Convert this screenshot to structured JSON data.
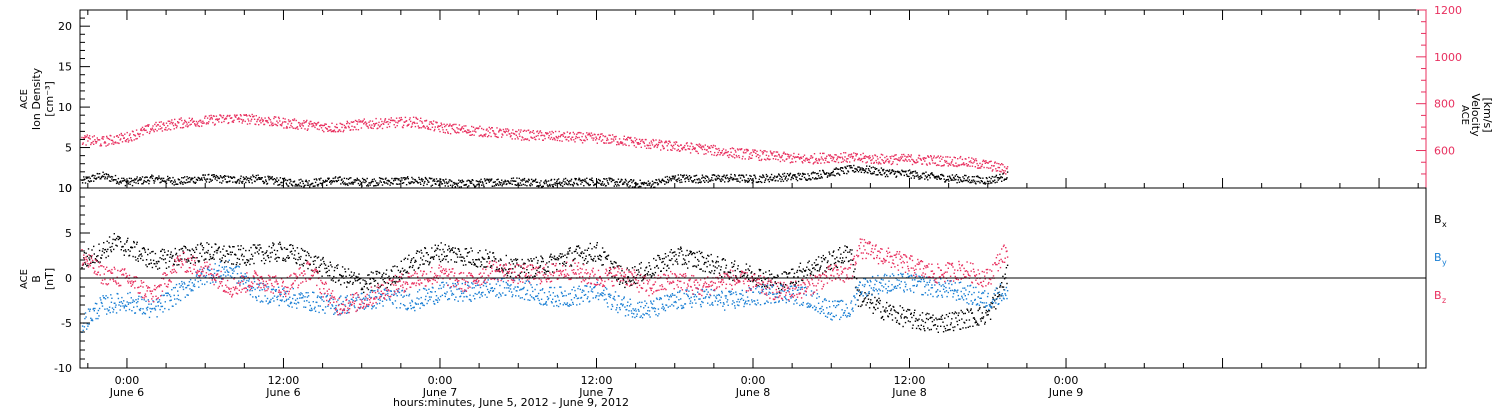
{
  "colors": {
    "axis": "#000000",
    "velocity": "#e8305f",
    "density": "#000000",
    "bx": "#000000",
    "by": "#1a7fd4",
    "bz": "#e8305f"
  },
  "x_axis": {
    "title": "hours:minutes, June  5, 2012 - June  9, 2012",
    "range_hours": [
      -3.6,
      99.6
    ],
    "ticks": [
      {
        "hour": 0,
        "time": "0:00",
        "day": "June 6"
      },
      {
        "hour": 12,
        "time": "12:00",
        "day": "June 6"
      },
      {
        "hour": 24,
        "time": "0:00",
        "day": "June 7"
      },
      {
        "hour": 36,
        "time": "12:00",
        "day": "June 7"
      },
      {
        "hour": 48,
        "time": "0:00",
        "day": "June 8"
      },
      {
        "hour": 60,
        "time": "12:00",
        "day": "June 8"
      },
      {
        "hour": 72,
        "time": "0:00",
        "day": "June 9"
      }
    ]
  },
  "chart_data": [
    {
      "type": "scatter",
      "panel": "top",
      "ylabel_left": [
        "ACE",
        "Ion Density",
        "[cm⁻³]"
      ],
      "ylabel_right": [
        "ACE",
        "Velocity",
        "[km/s]"
      ],
      "ylim_left": [
        0,
        22
      ],
      "ylim_right": [
        440,
        1200
      ],
      "yticks_left": [
        0,
        5,
        10,
        15,
        20
      ],
      "yticks_right": [
        600,
        800,
        1000,
        1200
      ],
      "series": [
        {
          "key": "density",
          "axis": "left",
          "points": [
            [
              -3.5,
              0.9
            ],
            [
              -2,
              1.6
            ],
            [
              0,
              0.8
            ],
            [
              2,
              1.2
            ],
            [
              4,
              0.9
            ],
            [
              6,
              1.3
            ],
            [
              8,
              1.1
            ],
            [
              10,
              1.2
            ],
            [
              12,
              0.8
            ],
            [
              14,
              0.7
            ],
            [
              16,
              1
            ],
            [
              18,
              0.8
            ],
            [
              20,
              0.9
            ],
            [
              22,
              1
            ],
            [
              24,
              0.7
            ],
            [
              26,
              0.6
            ],
            [
              28,
              0.8
            ],
            [
              30,
              0.9
            ],
            [
              32,
              0.7
            ],
            [
              34,
              0.8
            ],
            [
              36,
              0.9
            ],
            [
              38,
              0.7
            ],
            [
              40,
              0.5
            ],
            [
              42,
              1.3
            ],
            [
              44,
              1.2
            ],
            [
              46,
              1.3
            ],
            [
              48,
              1.2
            ],
            [
              50,
              1.4
            ],
            [
              52,
              1.5
            ],
            [
              54,
              2
            ],
            [
              56,
              2.5
            ],
            [
              58,
              2
            ],
            [
              60,
              1.8
            ],
            [
              62,
              1.4
            ],
            [
              64,
              1.2
            ],
            [
              66,
              1
            ],
            [
              67.5,
              1.6
            ]
          ]
        },
        {
          "key": "velocity",
          "axis": "right",
          "points": [
            [
              -3.5,
              650
            ],
            [
              -2,
              640
            ],
            [
              0,
              660
            ],
            [
              2,
              700
            ],
            [
              4,
              720
            ],
            [
              6,
              730
            ],
            [
              8,
              740
            ],
            [
              10,
              735
            ],
            [
              12,
              720
            ],
            [
              14,
              710
            ],
            [
              16,
              700
            ],
            [
              18,
              715
            ],
            [
              20,
              720
            ],
            [
              22,
              725
            ],
            [
              24,
              700
            ],
            [
              26,
              690
            ],
            [
              28,
              680
            ],
            [
              30,
              670
            ],
            [
              32,
              665
            ],
            [
              34,
              660
            ],
            [
              36,
              655
            ],
            [
              38,
              645
            ],
            [
              40,
              630
            ],
            [
              42,
              620
            ],
            [
              44,
              610
            ],
            [
              46,
              595
            ],
            [
              48,
              585
            ],
            [
              50,
              575
            ],
            [
              52,
              565
            ],
            [
              54,
              575
            ],
            [
              56,
              570
            ],
            [
              58,
              565
            ],
            [
              60,
              565
            ],
            [
              62,
              560
            ],
            [
              64,
              555
            ],
            [
              66,
              540
            ],
            [
              67.5,
              520
            ]
          ]
        }
      ]
    },
    {
      "type": "scatter",
      "panel": "bottom",
      "ylabel_left": [
        "ACE",
        "B",
        "[nT]"
      ],
      "ylim": [
        -10,
        10
      ],
      "yticks": [
        -10,
        -5,
        0,
        5,
        10
      ],
      "legend": [
        {
          "key": "bx",
          "label": "B",
          "sub": "x"
        },
        {
          "key": "by",
          "label": "B",
          "sub": "y"
        },
        {
          "key": "bz",
          "label": "B",
          "sub": "z"
        }
      ],
      "series": [
        {
          "key": "bx",
          "points": [
            [
              -3.5,
              2
            ],
            [
              -2,
              3
            ],
            [
              -1,
              4
            ],
            [
              0,
              3.5
            ],
            [
              2,
              2
            ],
            [
              4,
              2.5
            ],
            [
              6,
              3
            ],
            [
              8,
              2.5
            ],
            [
              10,
              2.7
            ],
            [
              12,
              3
            ],
            [
              14,
              2
            ],
            [
              16,
              0.5
            ],
            [
              18,
              -0.5
            ],
            [
              20,
              0
            ],
            [
              22,
              2
            ],
            [
              24,
              3
            ],
            [
              26,
              2.5
            ],
            [
              28,
              2
            ],
            [
              30,
              1
            ],
            [
              32,
              1.5
            ],
            [
              34,
              2.5
            ],
            [
              36,
              3
            ],
            [
              38,
              0
            ],
            [
              40,
              1
            ],
            [
              42,
              2.5
            ],
            [
              44,
              2
            ],
            [
              46,
              1
            ],
            [
              48,
              0.5
            ],
            [
              50,
              -0.5
            ],
            [
              52,
              1
            ],
            [
              54,
              2
            ],
            [
              55.5,
              3
            ],
            [
              56,
              -2
            ],
            [
              58,
              -3.5
            ],
            [
              60,
              -4.5
            ],
            [
              62,
              -5
            ],
            [
              64,
              -4.5
            ],
            [
              66,
              -4
            ],
            [
              67,
              -1
            ],
            [
              67.5,
              0.5
            ]
          ]
        },
        {
          "key": "by",
          "points": [
            [
              -3.5,
              -5
            ],
            [
              -2,
              -3
            ],
            [
              0,
              -2.5
            ],
            [
              2,
              -3.5
            ],
            [
              4,
              -1.5
            ],
            [
              6,
              0.5
            ],
            [
              8,
              1
            ],
            [
              10,
              -1.5
            ],
            [
              12,
              -2
            ],
            [
              14,
              -2.5
            ],
            [
              16,
              -3
            ],
            [
              18,
              -2.5
            ],
            [
              20,
              -2
            ],
            [
              22,
              -2.5
            ],
            [
              24,
              -1.5
            ],
            [
              26,
              -1.5
            ],
            [
              28,
              -1
            ],
            [
              30,
              -1
            ],
            [
              32,
              -2
            ],
            [
              34,
              -2
            ],
            [
              36,
              -1.5
            ],
            [
              38,
              -3
            ],
            [
              40,
              -3.5
            ],
            [
              42,
              -2.5
            ],
            [
              44,
              -2
            ],
            [
              46,
              -2.5
            ],
            [
              48,
              -2
            ],
            [
              50,
              -1.5
            ],
            [
              52,
              -2
            ],
            [
              54,
              -3.5
            ],
            [
              55.5,
              -3.5
            ],
            [
              56,
              -1
            ],
            [
              58,
              -0.5
            ],
            [
              60,
              -0.5
            ],
            [
              62,
              -1
            ],
            [
              64,
              -1.5
            ],
            [
              66,
              -2.5
            ],
            [
              67,
              -1.5
            ],
            [
              67.5,
              -2
            ]
          ]
        },
        {
          "key": "bz",
          "points": [
            [
              -3.5,
              2.5
            ],
            [
              -2,
              0.5
            ],
            [
              0,
              0
            ],
            [
              2,
              -2
            ],
            [
              4,
              2
            ],
            [
              6,
              1
            ],
            [
              8,
              -1
            ],
            [
              10,
              0
            ],
            [
              12,
              -1
            ],
            [
              14,
              1
            ],
            [
              16,
              -3
            ],
            [
              18,
              -2.5
            ],
            [
              20,
              -1
            ],
            [
              22,
              0
            ],
            [
              24,
              0.5
            ],
            [
              26,
              -0.5
            ],
            [
              28,
              1
            ],
            [
              30,
              0.5
            ],
            [
              32,
              0.5
            ],
            [
              34,
              1
            ],
            [
              36,
              0
            ],
            [
              38,
              0.5
            ],
            [
              40,
              -1
            ],
            [
              42,
              0
            ],
            [
              44,
              -1
            ],
            [
              46,
              0
            ],
            [
              48,
              -0.5
            ],
            [
              50,
              -1.5
            ],
            [
              52,
              -1
            ],
            [
              54,
              0.5
            ],
            [
              55.5,
              0.5
            ],
            [
              56,
              3.5
            ],
            [
              58,
              2.5
            ],
            [
              60,
              1.5
            ],
            [
              62,
              0.5
            ],
            [
              64,
              1
            ],
            [
              66,
              0
            ],
            [
              67,
              2.5
            ],
            [
              67.5,
              3
            ]
          ]
        }
      ]
    }
  ]
}
